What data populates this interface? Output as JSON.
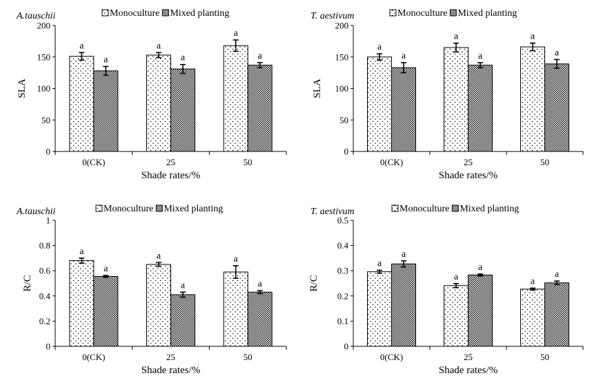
{
  "chart_data": [
    {
      "type": "bar",
      "panel_label": "A.tauschii",
      "categories": [
        "0(CK)",
        "25",
        "50"
      ],
      "series": [
        {
          "name": "Monoculture",
          "values": [
            151,
            153,
            168
          ],
          "errors": [
            6,
            4,
            9
          ],
          "sig": [
            "a",
            "a",
            "a"
          ]
        },
        {
          "name": "Mixed planting",
          "values": [
            128,
            131,
            137
          ],
          "errors": [
            7,
            7,
            4
          ],
          "sig": [
            "a",
            "a",
            "a"
          ]
        }
      ],
      "xlabel": "Shade rates/%",
      "ylabel": "SLA",
      "ylim": [
        0,
        200
      ],
      "yticks": [
        0,
        50,
        100,
        150,
        200
      ],
      "ytick_labels": [
        "0",
        "50",
        "100",
        "150",
        "200"
      ],
      "legend": "top"
    },
    {
      "type": "bar",
      "panel_label": "T. aestivum",
      "categories": [
        "0(CK)",
        "25",
        "50"
      ],
      "series": [
        {
          "name": "Monoculture",
          "values": [
            150,
            165,
            166
          ],
          "errors": [
            5,
            7,
            6
          ],
          "sig": [
            "a",
            "a",
            "a"
          ]
        },
        {
          "name": "Mixed planting",
          "values": [
            133,
            137,
            139
          ],
          "errors": [
            8,
            4,
            7
          ],
          "sig": [
            "a",
            "a",
            "a"
          ]
        }
      ],
      "xlabel": "Shade rates/%",
      "ylabel": "SLA",
      "ylim": [
        0,
        200
      ],
      "yticks": [
        0,
        50,
        100,
        150,
        200
      ],
      "ytick_labels": [
        "0",
        "50",
        "100",
        "150",
        "200"
      ],
      "legend": "top"
    },
    {
      "type": "bar",
      "panel_label": "A.tauschii",
      "categories": [
        "0(CK)",
        "25",
        "50"
      ],
      "series": [
        {
          "name": "Monoculture",
          "values": [
            0.68,
            0.65,
            0.59
          ],
          "errors": [
            0.02,
            0.015,
            0.05
          ],
          "sig": [
            "a",
            "a",
            "a"
          ]
        },
        {
          "name": "Mixed planting",
          "values": [
            0.555,
            0.41,
            0.43
          ],
          "errors": [
            0.008,
            0.02,
            0.012
          ],
          "sig": [
            "a",
            "a",
            "a"
          ]
        }
      ],
      "xlabel": "Shade rates/%",
      "ylabel": "R/C",
      "ylim": [
        0,
        1
      ],
      "yticks": [
        0,
        0.2,
        0.4,
        0.6,
        0.8,
        1
      ],
      "ytick_labels": [
        "0",
        "0.2",
        "0.4",
        "0.6",
        "0.8",
        "1"
      ],
      "legend": "top"
    },
    {
      "type": "bar",
      "panel_label": "T. aestivum",
      "categories": [
        "0(CK)",
        "25",
        "50"
      ],
      "series": [
        {
          "name": "Monoculture",
          "values": [
            0.296,
            0.241,
            0.227
          ],
          "errors": [
            0.006,
            0.008,
            0.004
          ],
          "sig": [
            "a",
            "a",
            "a"
          ]
        },
        {
          "name": "Mixed planting",
          "values": [
            0.327,
            0.283,
            0.252
          ],
          "errors": [
            0.012,
            0.004,
            0.007
          ],
          "sig": [
            "a",
            "a",
            "a"
          ]
        }
      ],
      "xlabel": "Shade rates/%",
      "ylabel": "R/C",
      "ylim": [
        0,
        0.5
      ],
      "yticks": [
        0,
        0.1,
        0.2,
        0.3,
        0.4,
        0.5
      ],
      "ytick_labels": [
        "0",
        "0.1",
        "0.2",
        "0.3",
        "0.4",
        "0.5"
      ],
      "legend": "top"
    }
  ]
}
